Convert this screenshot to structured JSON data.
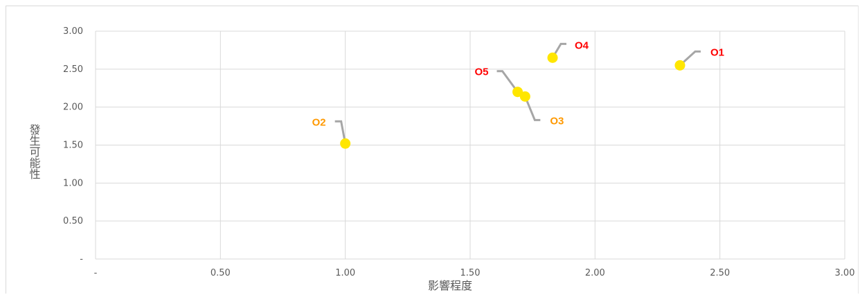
{
  "chart_data": {
    "type": "scatter",
    "xlabel": "影響程度",
    "ylabel": "發生可能性",
    "xlim": [
      0,
      3
    ],
    "ylim": [
      0,
      3
    ],
    "x_ticks": [
      {
        "value": 0,
        "label": "-"
      },
      {
        "value": 0.5,
        "label": "0.50"
      },
      {
        "value": 1.0,
        "label": "1.00"
      },
      {
        "value": 1.5,
        "label": "1.50"
      },
      {
        "value": 2.0,
        "label": "2.00"
      },
      {
        "value": 2.5,
        "label": "2.50"
      },
      {
        "value": 3.0,
        "label": "3.00"
      }
    ],
    "y_ticks": [
      {
        "value": 0,
        "label": "-"
      },
      {
        "value": 0.5,
        "label": "0.50"
      },
      {
        "value": 1.0,
        "label": "1.00"
      },
      {
        "value": 1.5,
        "label": "1.50"
      },
      {
        "value": 2.0,
        "label": "2.00"
      },
      {
        "value": 2.5,
        "label": "2.50"
      },
      {
        "value": 3.0,
        "label": "3.00"
      }
    ],
    "grid": true,
    "marker_color": "#ffe600",
    "leader_line_color": "#a6a6a6",
    "points": [
      {
        "label": "O1",
        "x": 2.34,
        "y": 2.55,
        "label_color": "#ff0000"
      },
      {
        "label": "O2",
        "x": 1.0,
        "y": 1.52,
        "label_color": "#ff9900"
      },
      {
        "label": "O3",
        "x": 1.72,
        "y": 2.14,
        "label_color": "#ff9900"
      },
      {
        "label": "O4",
        "x": 1.83,
        "y": 2.65,
        "label_color": "#ff0000"
      },
      {
        "label": "O5",
        "x": 1.69,
        "y": 2.2,
        "label_color": "#ff0000"
      }
    ]
  }
}
